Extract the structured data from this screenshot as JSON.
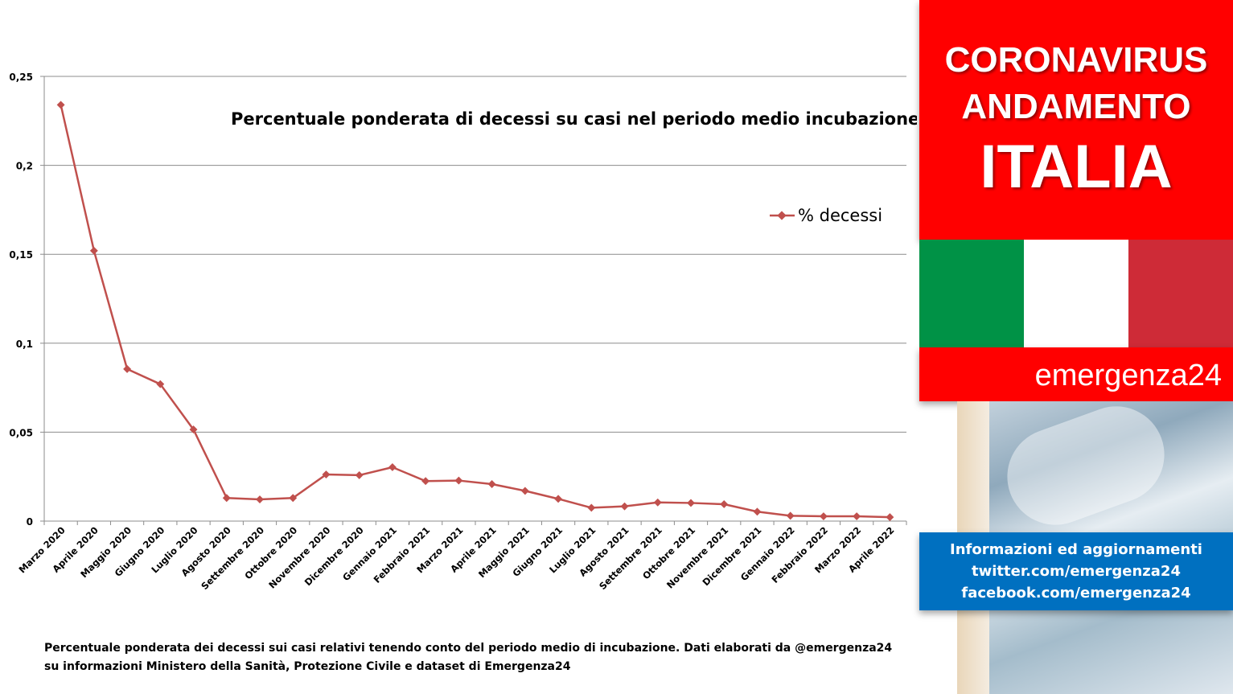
{
  "banner": {
    "line1": "CORONAVIRUS",
    "line2": "ANDAMENTO",
    "line3": "ITALIA"
  },
  "flag": {
    "green": "#009246",
    "white": "#ffffff",
    "red": "#ce2b37"
  },
  "brand": {
    "name": "emergenza24"
  },
  "info": {
    "line1": "Informazioni ed aggiornamenti",
    "line2": "twitter.com/emergenza24",
    "line3": "facebook.com/emergenza24"
  },
  "footnote": {
    "line1": "Percentuale ponderata  dei decessi sui casi relativi tenendo conto del periodo medio di incubazione. Dati elaborati da @emergenza24",
    "line2": "su informazioni  Ministero della Sanità, Protezione Civile e dataset di Emergenza24"
  },
  "chart_data": {
    "type": "line",
    "title": "Percentuale ponderata di decessi su casi nel periodo medio incubazione",
    "categories": [
      "Marzo 2020",
      "Aprile 2020",
      "Maggio 2020",
      "Giugno 2020",
      "Luglio 2020",
      "Agosto 2020",
      "Settembre 2020",
      "Ottobre 2020",
      "Novembre 2020",
      "Dicembre 2020",
      "Gennaio 2021",
      "Febbraio 2021",
      "Marzo 2021",
      "Aprile 2021",
      "Maggio 2021",
      "Giugno 2021",
      "Luglio 2021",
      "Agosto 2021",
      "Settembre 2021",
      "Ottobre 2021",
      "Novembre 2021",
      "Dicembre 2021",
      "Gennaio 2022",
      "Febbraio 2022",
      "Marzo 2022",
      "Aprile 2022"
    ],
    "series": [
      {
        "name": "% decessi",
        "color": "#c0504d",
        "values": [
          0.234,
          0.152,
          0.0855,
          0.077,
          0.0515,
          0.013,
          0.0122,
          0.013,
          0.0262,
          0.0258,
          0.0303,
          0.0225,
          0.0228,
          0.0208,
          0.017,
          0.0125,
          0.0075,
          0.0083,
          0.0105,
          0.0102,
          0.0095,
          0.0053,
          0.003,
          0.0027,
          0.0027,
          0.0022
        ]
      }
    ],
    "yticks": [
      "0",
      "0,05",
      "0,1",
      "0,15",
      "0,2",
      "0,25"
    ],
    "ylim": [
      0,
      0.25
    ],
    "grid": true,
    "legend": "right"
  }
}
